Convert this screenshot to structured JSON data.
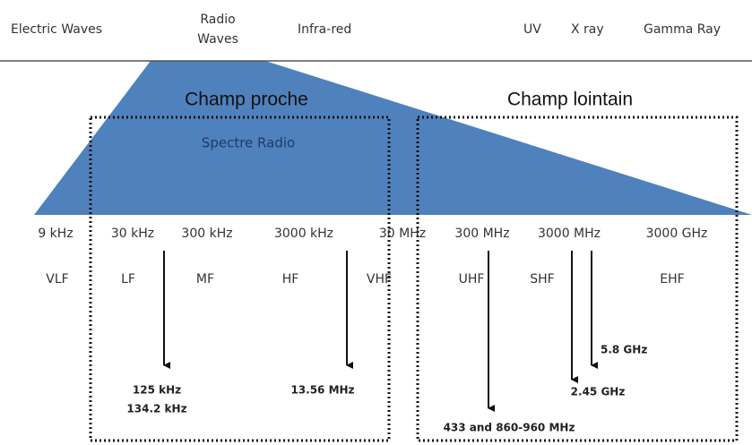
{
  "spectrum": {
    "electric": "Electric Waves",
    "radio": [
      "Radio",
      "Waves"
    ],
    "infrared": "Infra-red",
    "uv": "UV",
    "xray": "X ray",
    "gamma": "Gamma Ray"
  },
  "zones": {
    "near": "Champ proche",
    "far": "Champ lointain",
    "radio_spectrum": "Spectre Radio"
  },
  "frequencies": [
    "9 kHz",
    "30 kHz",
    "300 kHz",
    "3000 kHz",
    "30 MHz",
    "300 MHz",
    "3000 MHz",
    "3000 GHz"
  ],
  "bands": [
    "VLF",
    "LF",
    "MF",
    "HF",
    "VHF",
    "UHF",
    "SHF",
    "EHF"
  ],
  "markers": {
    "lf": [
      "125 kHz",
      "134.2 kHz"
    ],
    "hf": "13.56 MHz",
    "ghz58": "5.8 GHz",
    "ghz245": "2.45 GHz",
    "uhf": "433 and 860-960 MHz"
  }
}
